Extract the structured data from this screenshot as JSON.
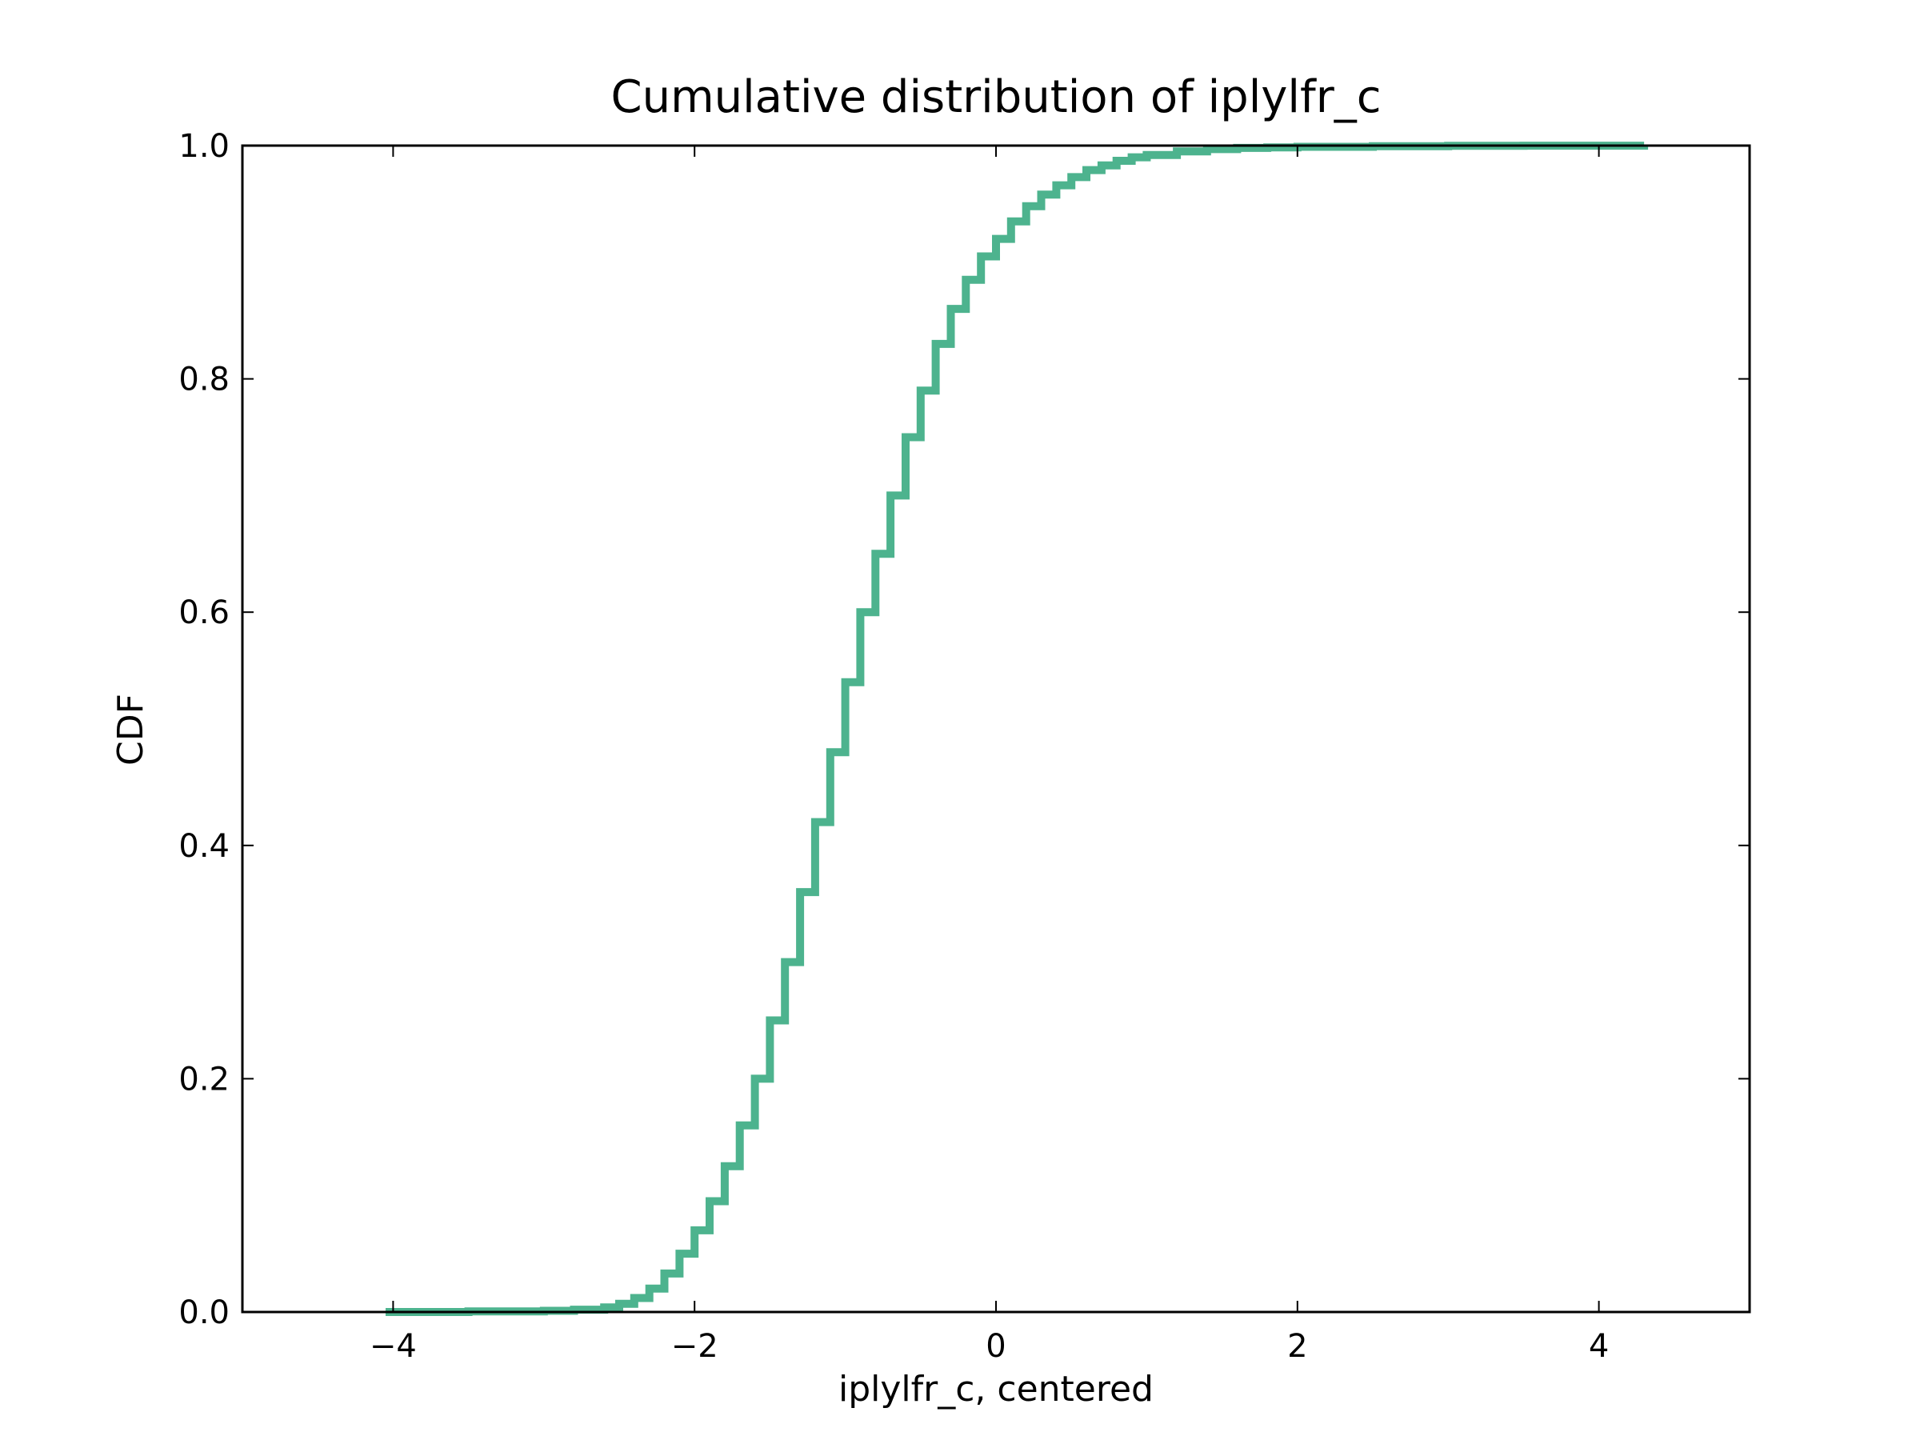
{
  "chart_data": {
    "type": "line",
    "title": "Cumulative distribution of iplylfr_c",
    "xlabel": "iplylfr_c, centered",
    "ylabel": "CDF",
    "xlim": [
      -5,
      5
    ],
    "ylim": [
      0.0,
      1.0
    ],
    "xticks": [
      -4,
      -2,
      0,
      2,
      4
    ],
    "xtick_labels": [
      "−4",
      "−2",
      "0",
      "2",
      "4"
    ],
    "yticks": [
      0.0,
      0.2,
      0.4,
      0.6,
      0.8,
      1.0
    ],
    "ytick_labels": [
      "0.0",
      "0.2",
      "0.4",
      "0.6",
      "0.8",
      "1.0"
    ],
    "grid": false,
    "legend": "none",
    "series": [
      {
        "color": "#4db38e",
        "drawstyle": "steps",
        "x": [
          -4.05,
          -3.5,
          -3.0,
          -2.8,
          -2.6,
          -2.5,
          -2.4,
          -2.3,
          -2.2,
          -2.1,
          -2.0,
          -1.9,
          -1.8,
          -1.7,
          -1.6,
          -1.5,
          -1.4,
          -1.3,
          -1.2,
          -1.1,
          -1.0,
          -0.9,
          -0.8,
          -0.7,
          -0.6,
          -0.5,
          -0.4,
          -0.3,
          -0.2,
          -0.1,
          0.0,
          0.1,
          0.2,
          0.3,
          0.4,
          0.5,
          0.6,
          0.7,
          0.8,
          0.9,
          1.0,
          1.2,
          1.4,
          1.6,
          1.8,
          2.0,
          2.5,
          3.0,
          3.5,
          4.3
        ],
        "y": [
          0.0,
          0.0005,
          0.001,
          0.002,
          0.004,
          0.007,
          0.012,
          0.02,
          0.033,
          0.05,
          0.07,
          0.095,
          0.125,
          0.16,
          0.2,
          0.25,
          0.3,
          0.36,
          0.42,
          0.48,
          0.54,
          0.6,
          0.65,
          0.7,
          0.75,
          0.79,
          0.83,
          0.86,
          0.885,
          0.905,
          0.92,
          0.935,
          0.948,
          0.958,
          0.966,
          0.973,
          0.979,
          0.983,
          0.987,
          0.99,
          0.992,
          0.995,
          0.997,
          0.998,
          0.9985,
          0.999,
          0.9995,
          0.9998,
          0.9999,
          1.0
        ]
      }
    ]
  }
}
